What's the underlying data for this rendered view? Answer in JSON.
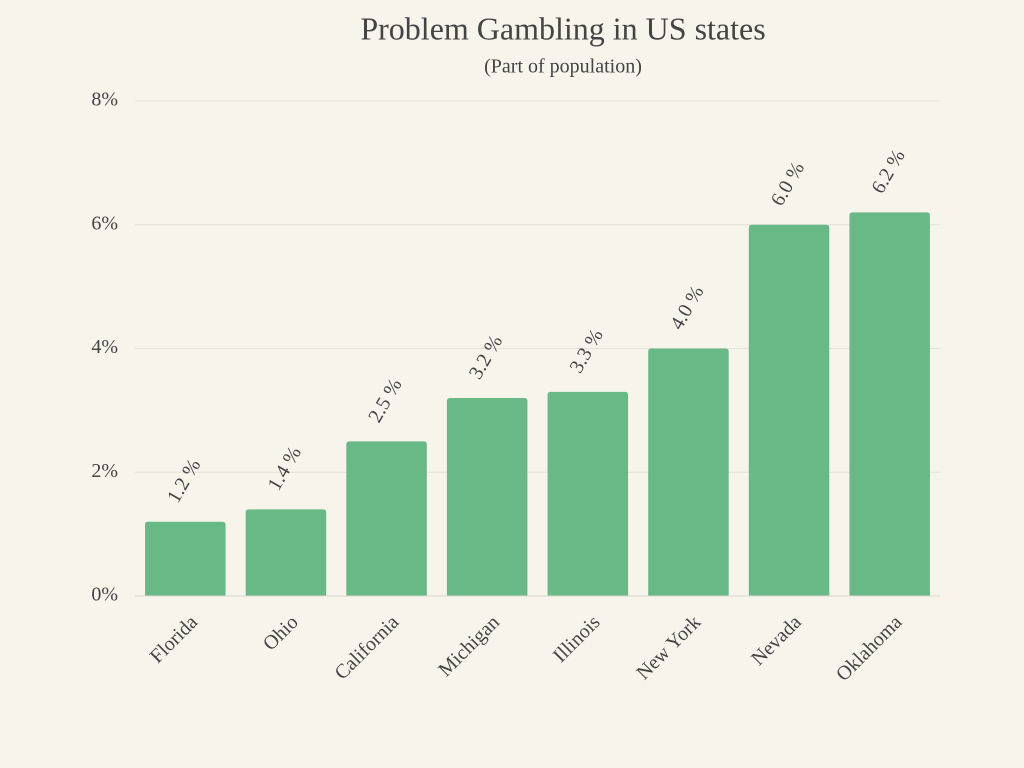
{
  "chart_data": {
    "type": "bar",
    "title": "Problem Gambling in US states",
    "subtitle": "(Part of population)",
    "categories": [
      "Florida",
      "Ohio",
      "California",
      "Michigan",
      "Illinois",
      "New York",
      "Nevada",
      "Oklahoma"
    ],
    "values": [
      1.2,
      1.4,
      2.5,
      3.2,
      3.3,
      4.0,
      6.0,
      6.2
    ],
    "value_labels": [
      "1.2 %",
      "1.4 %",
      "2.5 %",
      "3.2 %",
      "3.3 %",
      "4.0 %",
      "6.0 %",
      "6.2 %"
    ],
    "color": "#69b986",
    "ylim": [
      0,
      8
    ],
    "yticks": [
      {
        "value": 0,
        "label": "0%"
      },
      {
        "value": 2,
        "label": "2%"
      },
      {
        "value": 4,
        "label": "4%"
      },
      {
        "value": 6,
        "label": "6%"
      },
      {
        "value": 8,
        "label": "8%"
      }
    ],
    "grid": true
  }
}
